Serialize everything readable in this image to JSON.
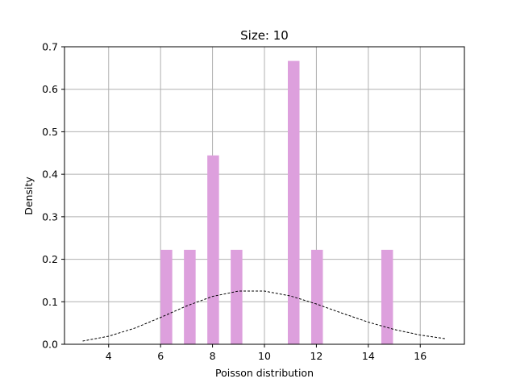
{
  "chart_data": {
    "type": "bar",
    "title": "Size: 10",
    "xlabel": "Poisson distribution",
    "ylabel": "Density",
    "xlim": [
      2.3,
      17.7
    ],
    "ylim": [
      0,
      0.7
    ],
    "grid": true,
    "xticks": [
      4,
      6,
      8,
      10,
      12,
      14,
      16
    ],
    "yticks": [
      0.0,
      0.1,
      0.2,
      0.3,
      0.4,
      0.5,
      0.6,
      0.7
    ],
    "bar_color": "#dda0dd",
    "bars": [
      {
        "x0": 6.0,
        "x1": 6.45,
        "value": 0.2222
      },
      {
        "x0": 6.9,
        "x1": 7.35,
        "value": 0.2222
      },
      {
        "x0": 7.8,
        "x1": 8.25,
        "value": 0.4444
      },
      {
        "x0": 8.7,
        "x1": 9.15,
        "value": 0.2222
      },
      {
        "x0": 10.9,
        "x1": 11.35,
        "value": 0.6667
      },
      {
        "x0": 11.8,
        "x1": 12.25,
        "value": 0.2222
      },
      {
        "x0": 14.5,
        "x1": 14.95,
        "value": 0.2222
      }
    ],
    "curve": {
      "style": "dashed",
      "color": "#000000",
      "x": [
        3,
        4,
        5,
        6,
        7,
        8,
        9,
        10,
        11,
        12,
        13,
        14,
        15,
        16,
        17
      ],
      "y": [
        0.0076,
        0.0189,
        0.0378,
        0.0631,
        0.0901,
        0.1126,
        0.1251,
        0.1251,
        0.1137,
        0.0948,
        0.0729,
        0.0521,
        0.0347,
        0.0217,
        0.0128
      ]
    }
  }
}
